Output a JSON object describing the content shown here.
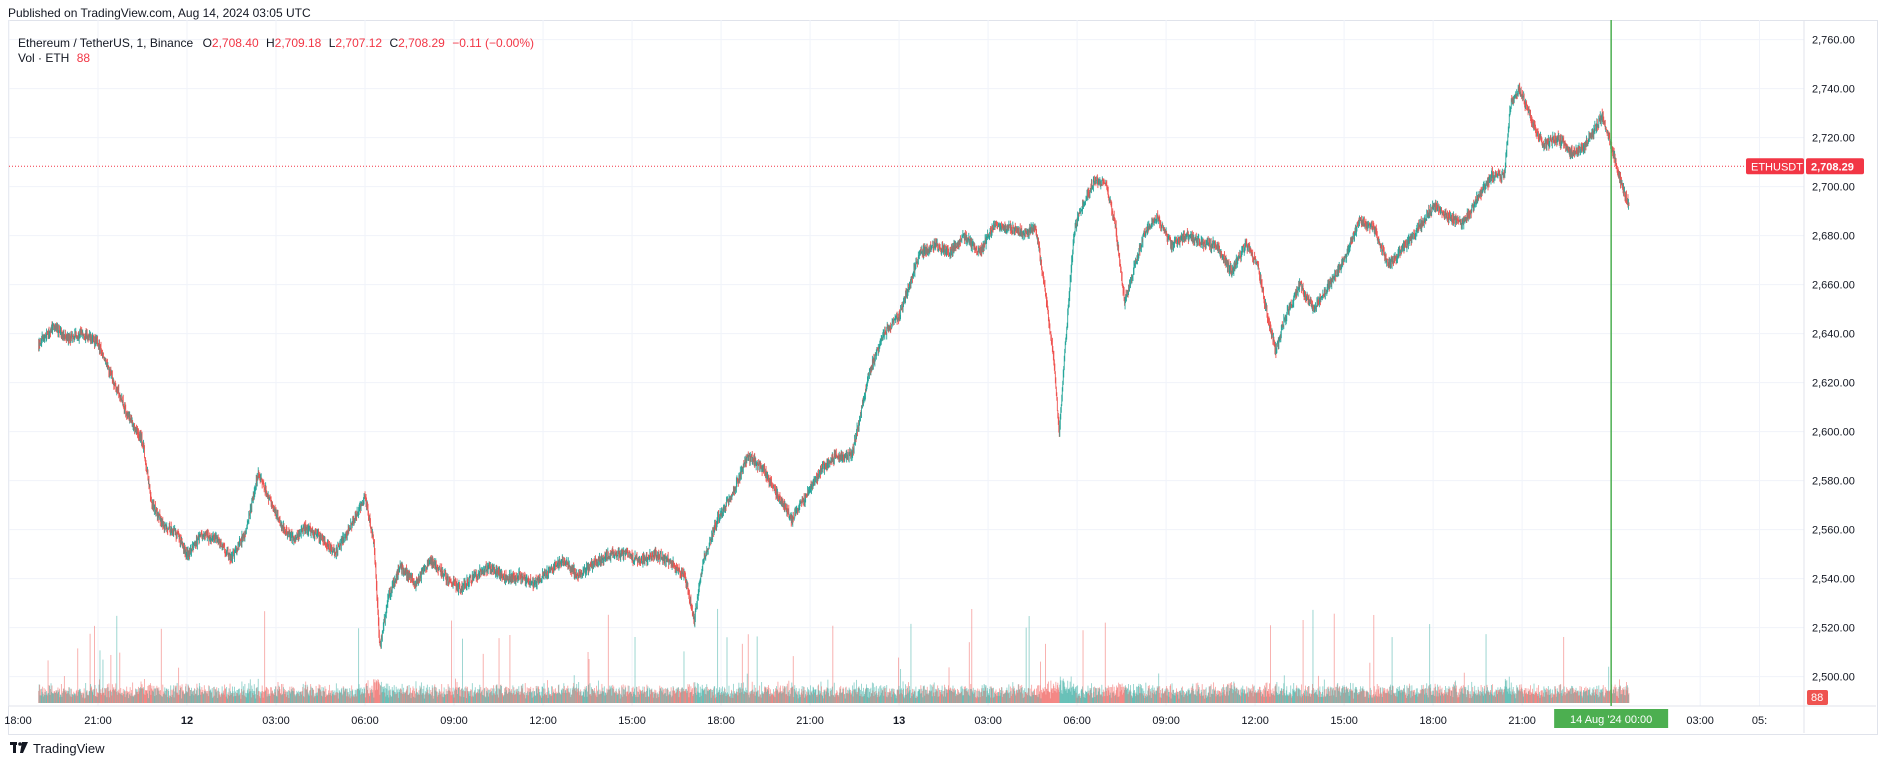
{
  "header": {
    "published": "Published on TradingView.com, Aug 14, 2024 03:05 UTC"
  },
  "legend": {
    "symbol": "Ethereum / TetherUS, 1, Binance",
    "o_label": "O",
    "o_value": "2,708.40",
    "h_label": "H",
    "h_value": "2,709.18",
    "l_label": "L",
    "l_value": "2,707.12",
    "c_label": "C",
    "c_value": "2,708.29",
    "change": "−0.11 (−0.00%)",
    "vol_label": "Vol · ETH",
    "vol_value": "88"
  },
  "footer": {
    "brand": "TradingView",
    "logo_icon": "tradingview-logo-icon"
  },
  "colors": {
    "up": "#26a69a",
    "down": "#ef5350",
    "price_line": "#f23645",
    "crosshair": "#4caf50",
    "grid": "#f0f3fa",
    "axis_text": "#131722"
  },
  "chart_data": {
    "type": "candlestick",
    "title": "Ethereum / TetherUS, 1, Binance",
    "symbol_tag": "ETHUSDT",
    "last_price": 2708.29,
    "last_price_label": "2,708.29",
    "volume_last_label": "88",
    "ylim": [
      2488,
      2768
    ],
    "y_ticks": [
      2500,
      2520,
      2540,
      2560,
      2580,
      2600,
      2620,
      2640,
      2660,
      2680,
      2700,
      2720,
      2740,
      2760
    ],
    "y_tick_labels": [
      "2,500.00",
      "2,520.00",
      "2,540.00",
      "2,560.00",
      "2,580.00",
      "2,600.00",
      "2,620.00",
      "2,640.00",
      "2,660.00",
      "2,680.00",
      "2,700.00",
      "2,720.00",
      "2,740.00",
      "2,760.00"
    ],
    "x_tick_labels": [
      "18:00",
      "21:00",
      "12",
      "03:00",
      "06:00",
      "09:00",
      "12:00",
      "15:00",
      "18:00",
      "21:00",
      "13",
      "03:00",
      "06:00",
      "09:00",
      "12:00",
      "15:00",
      "18:00",
      "21:00",
      "00:00",
      "03:00",
      "05:"
    ],
    "x_tick_hours": [
      -1,
      2,
      5,
      8,
      11,
      14,
      17,
      20,
      23,
      26,
      29,
      32,
      35,
      38,
      41,
      44,
      47,
      50,
      53,
      56,
      58
    ],
    "bold_ticks": [
      "12",
      "13"
    ],
    "crosshair_label": "14 Aug '24   00:00",
    "crosshair_hour": 53,
    "hour_range": [
      -1,
      59.5
    ],
    "price_path": [
      [
        0.0,
        2636
      ],
      [
        0.5,
        2643
      ],
      [
        1.0,
        2638
      ],
      [
        1.5,
        2640
      ],
      [
        2.0,
        2636
      ],
      [
        2.6,
        2618
      ],
      [
        3.0,
        2607
      ],
      [
        3.5,
        2596
      ],
      [
        3.8,
        2571
      ],
      [
        4.2,
        2562
      ],
      [
        4.6,
        2559
      ],
      [
        5.0,
        2550
      ],
      [
        5.5,
        2558
      ],
      [
        6.0,
        2556
      ],
      [
        6.5,
        2548
      ],
      [
        7.0,
        2560
      ],
      [
        7.4,
        2583
      ],
      [
        7.8,
        2572
      ],
      [
        8.2,
        2561
      ],
      [
        8.6,
        2556
      ],
      [
        9.0,
        2561
      ],
      [
        9.6,
        2556
      ],
      [
        10.0,
        2550
      ],
      [
        10.5,
        2561
      ],
      [
        11.0,
        2573
      ],
      [
        11.3,
        2555
      ],
      [
        11.5,
        2512
      ],
      [
        11.8,
        2533
      ],
      [
        12.2,
        2545
      ],
      [
        12.7,
        2538
      ],
      [
        13.2,
        2548
      ],
      [
        13.7,
        2541
      ],
      [
        14.2,
        2536
      ],
      [
        14.7,
        2541
      ],
      [
        15.2,
        2545
      ],
      [
        15.7,
        2540
      ],
      [
        16.2,
        2541
      ],
      [
        16.7,
        2538
      ],
      [
        17.2,
        2543
      ],
      [
        17.7,
        2547
      ],
      [
        18.2,
        2541
      ],
      [
        18.7,
        2546
      ],
      [
        19.3,
        2550
      ],
      [
        19.8,
        2550
      ],
      [
        20.3,
        2547
      ],
      [
        20.8,
        2550
      ],
      [
        21.3,
        2547
      ],
      [
        21.8,
        2540
      ],
      [
        22.1,
        2523
      ],
      [
        22.4,
        2547
      ],
      [
        22.9,
        2565
      ],
      [
        23.4,
        2575
      ],
      [
        23.9,
        2590
      ],
      [
        24.4,
        2585
      ],
      [
        24.9,
        2574
      ],
      [
        25.4,
        2564
      ],
      [
        25.9,
        2574
      ],
      [
        26.4,
        2585
      ],
      [
        26.9,
        2590
      ],
      [
        27.4,
        2590
      ],
      [
        27.7,
        2607
      ],
      [
        28.0,
        2625
      ],
      [
        28.5,
        2640
      ],
      [
        29.0,
        2647
      ],
      [
        29.4,
        2662
      ],
      [
        29.7,
        2673
      ],
      [
        30.2,
        2676
      ],
      [
        30.7,
        2673
      ],
      [
        31.2,
        2680
      ],
      [
        31.7,
        2673
      ],
      [
        32.2,
        2684
      ],
      [
        32.7,
        2683
      ],
      [
        33.2,
        2681
      ],
      [
        33.6,
        2683
      ],
      [
        33.9,
        2660
      ],
      [
        34.2,
        2630
      ],
      [
        34.4,
        2600
      ],
      [
        34.6,
        2635
      ],
      [
        34.9,
        2682
      ],
      [
        35.2,
        2693
      ],
      [
        35.6,
        2703
      ],
      [
        36.0,
        2700
      ],
      [
        36.3,
        2683
      ],
      [
        36.6,
        2653
      ],
      [
        36.9,
        2666
      ],
      [
        37.3,
        2682
      ],
      [
        37.7,
        2687
      ],
      [
        38.2,
        2676
      ],
      [
        38.7,
        2680
      ],
      [
        39.2,
        2677
      ],
      [
        39.7,
        2676
      ],
      [
        40.2,
        2665
      ],
      [
        40.7,
        2677
      ],
      [
        41.1,
        2667
      ],
      [
        41.4,
        2648
      ],
      [
        41.7,
        2633
      ],
      [
        42.0,
        2646
      ],
      [
        42.5,
        2660
      ],
      [
        43.0,
        2650
      ],
      [
        43.5,
        2660
      ],
      [
        44.0,
        2670
      ],
      [
        44.5,
        2686
      ],
      [
        45.0,
        2683
      ],
      [
        45.5,
        2668
      ],
      [
        46.0,
        2675
      ],
      [
        46.5,
        2683
      ],
      [
        47.0,
        2692
      ],
      [
        47.5,
        2688
      ],
      [
        48.0,
        2685
      ],
      [
        48.5,
        2695
      ],
      [
        49.0,
        2705
      ],
      [
        49.4,
        2704
      ],
      [
        49.6,
        2733
      ],
      [
        49.9,
        2740
      ],
      [
        50.3,
        2728
      ],
      [
        50.7,
        2717
      ],
      [
        51.2,
        2720
      ],
      [
        51.7,
        2713
      ],
      [
        52.2,
        2718
      ],
      [
        52.7,
        2729
      ],
      [
        53.0,
        2717
      ],
      [
        53.3,
        2703
      ],
      [
        53.6,
        2692
      ]
    ]
  }
}
